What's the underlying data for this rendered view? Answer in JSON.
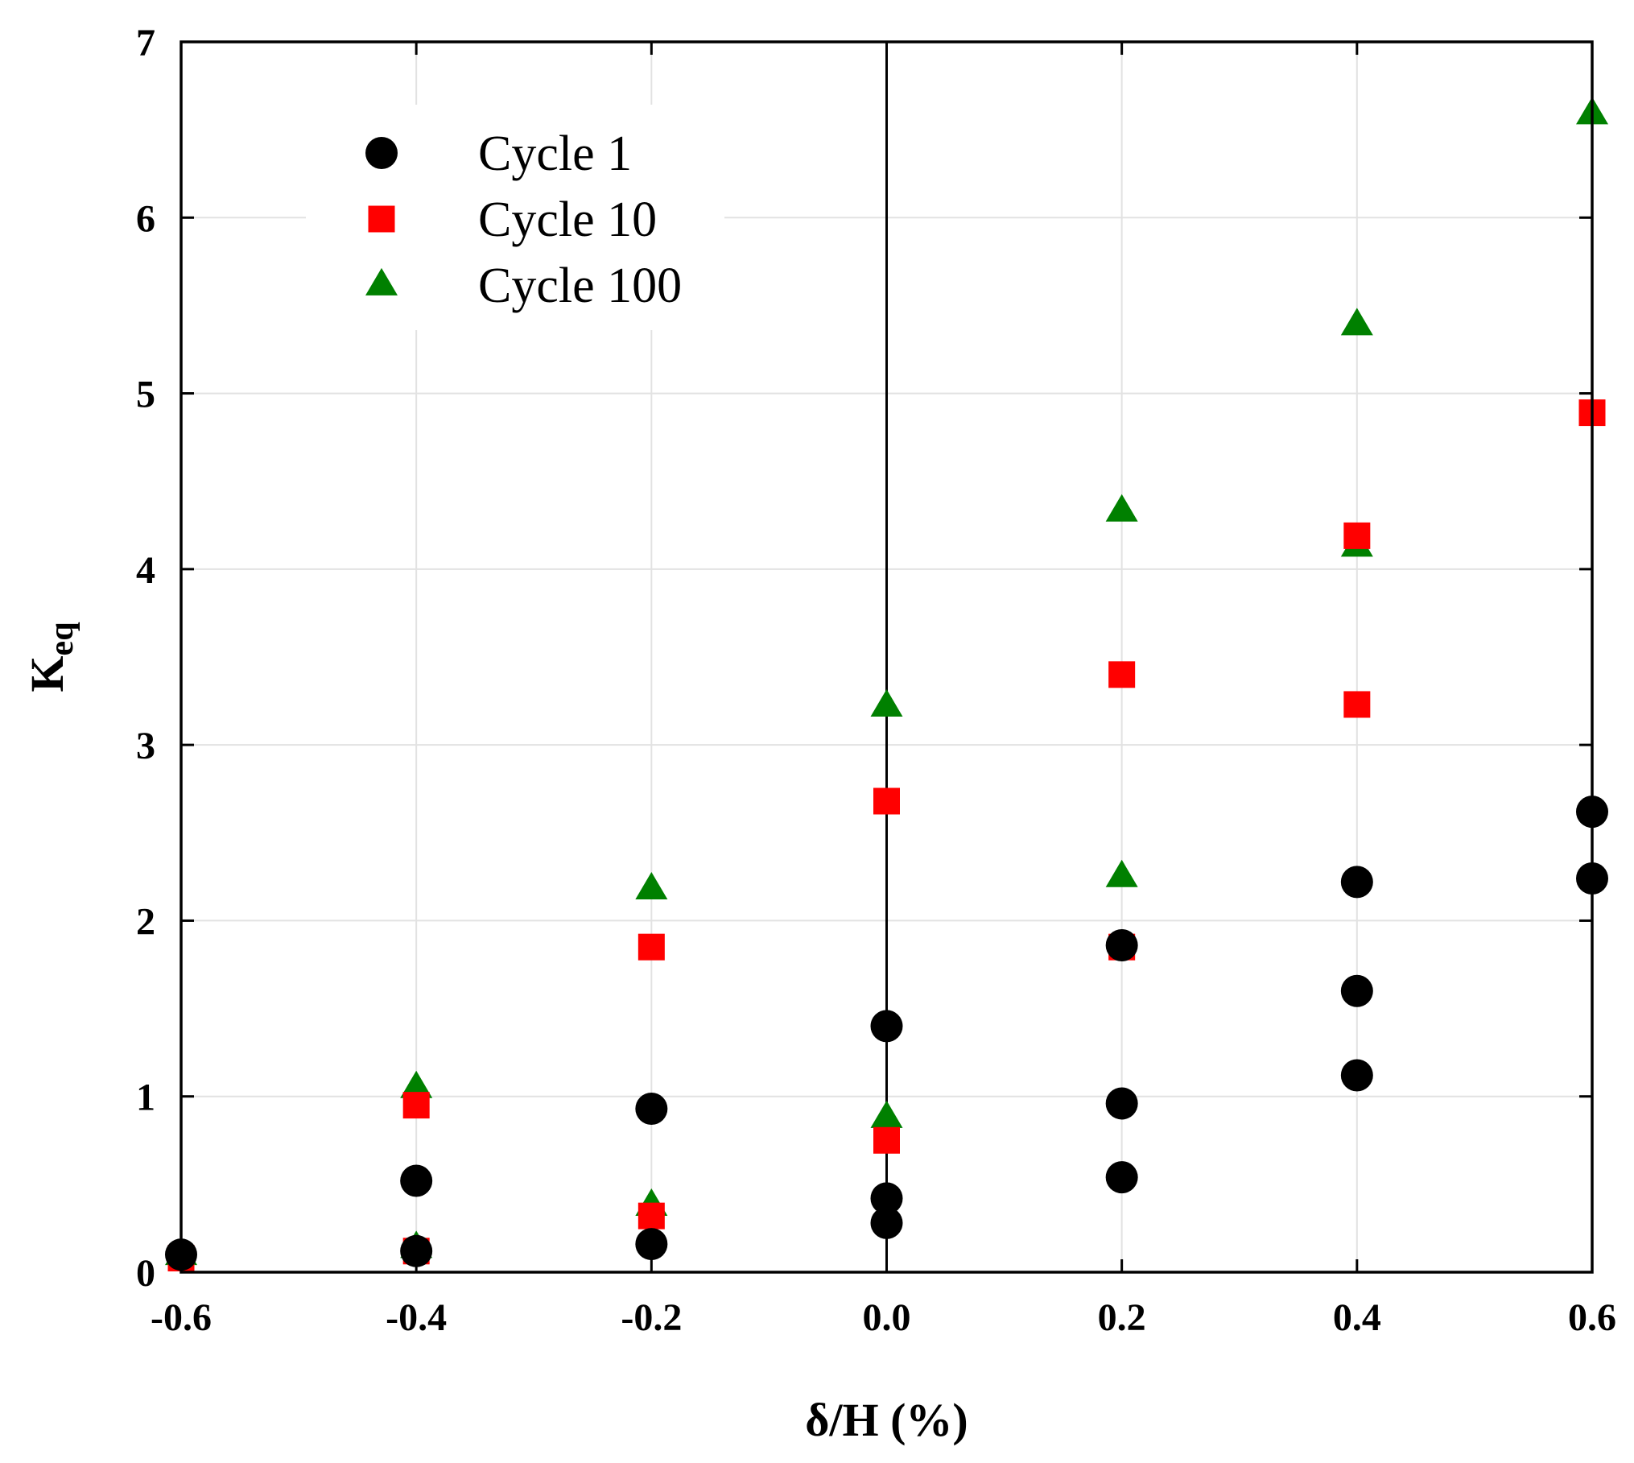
{
  "chart_data": {
    "type": "scatter",
    "title": "",
    "xlabel": "δ/H (%)",
    "ylabel": "K",
    "ylabel_subscript": "eq",
    "xlim": [
      -0.6,
      0.6
    ],
    "ylim": [
      0,
      7
    ],
    "xticks": [
      -0.6,
      -0.4,
      -0.2,
      0.0,
      0.2,
      0.4,
      0.6
    ],
    "xtick_labels": [
      "-0.6",
      "-0.4",
      "-0.2",
      "0.0",
      "0.2",
      "0.4",
      "0.6"
    ],
    "yticks": [
      0,
      1,
      2,
      3,
      4,
      5,
      6,
      7
    ],
    "ytick_labels": [
      "0",
      "1",
      "2",
      "3",
      "4",
      "5",
      "6",
      "7"
    ],
    "grid": true,
    "legend_position": "top-left",
    "series": [
      {
        "name": "Cycle 1",
        "marker": "circle",
        "color": "#000000",
        "x": [
          -0.6,
          -0.4,
          -0.4,
          -0.2,
          -0.2,
          0.0,
          0.0,
          0.0,
          0.2,
          0.2,
          0.2,
          0.4,
          0.4,
          0.4,
          0.6,
          0.6
        ],
        "y": [
          0.1,
          0.52,
          0.12,
          0.93,
          0.16,
          1.4,
          0.42,
          0.28,
          1.86,
          0.96,
          0.54,
          2.22,
          1.6,
          1.12,
          2.62,
          2.24
        ]
      },
      {
        "name": "Cycle 10",
        "marker": "square",
        "color": "#ff0000",
        "x": [
          -0.6,
          -0.4,
          -0.4,
          -0.2,
          -0.2,
          0.0,
          0.0,
          0.2,
          0.2,
          0.4,
          0.4,
          0.6
        ],
        "y": [
          0.08,
          0.95,
          0.12,
          1.85,
          0.32,
          2.68,
          0.75,
          3.4,
          1.85,
          4.19,
          3.23,
          4.89
        ]
      },
      {
        "name": "Cycle 100",
        "marker": "triangle",
        "color": "#008000",
        "x": [
          -0.6,
          -0.4,
          -0.4,
          -0.2,
          -0.2,
          0.0,
          0.0,
          0.2,
          0.2,
          0.4,
          0.4,
          0.6
        ],
        "y": [
          0.1,
          1.05,
          0.14,
          2.18,
          0.38,
          3.22,
          0.88,
          4.33,
          2.25,
          4.13,
          5.39,
          6.59
        ]
      }
    ]
  }
}
